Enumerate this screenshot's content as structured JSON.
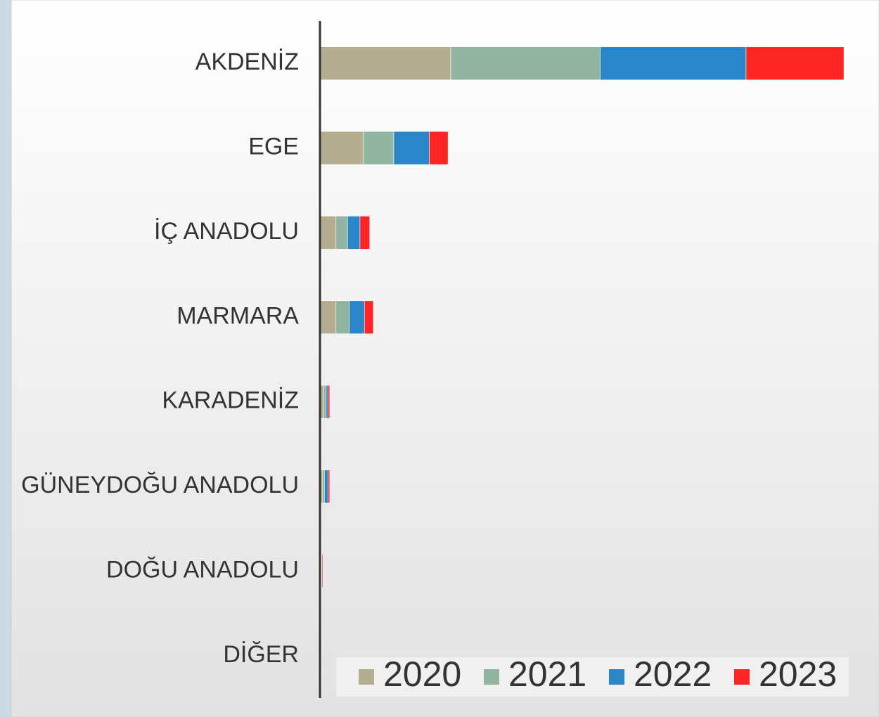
{
  "chart_data": {
    "type": "stacked_barh",
    "categories": [
      "AKDENİZ",
      "EGE",
      "İÇ ANADOLU",
      "MARMARA",
      "KARADENİZ",
      "GÜNEYDOĞU ANADOLU",
      "DOĞU ANADOLU",
      "DİĞER"
    ],
    "series": [
      {
        "name": "2020",
        "color": "#b5ad8f",
        "values": [
          73.5,
          24.5,
          9,
          9,
          2,
          1.5,
          0.5,
          0.3
        ]
      },
      {
        "name": "2021",
        "color": "#91b5a0",
        "values": [
          84,
          17,
          6.5,
          7.5,
          1.5,
          1,
          0.3,
          0.3
        ]
      },
      {
        "name": "2022",
        "color": "#2a86c8",
        "values": [
          82,
          20,
          7,
          8.5,
          1,
          2,
          0.3,
          0.3
        ]
      },
      {
        "name": "2023",
        "color": "#fe2525",
        "values": [
          55,
          10.5,
          5.5,
          5,
          1,
          1,
          0.5,
          0.3
        ]
      }
    ],
    "xlim": [
      0,
      300
    ],
    "xticks": [
      0,
      100,
      200,
      300
    ],
    "grid": true,
    "legend": "lower right"
  }
}
